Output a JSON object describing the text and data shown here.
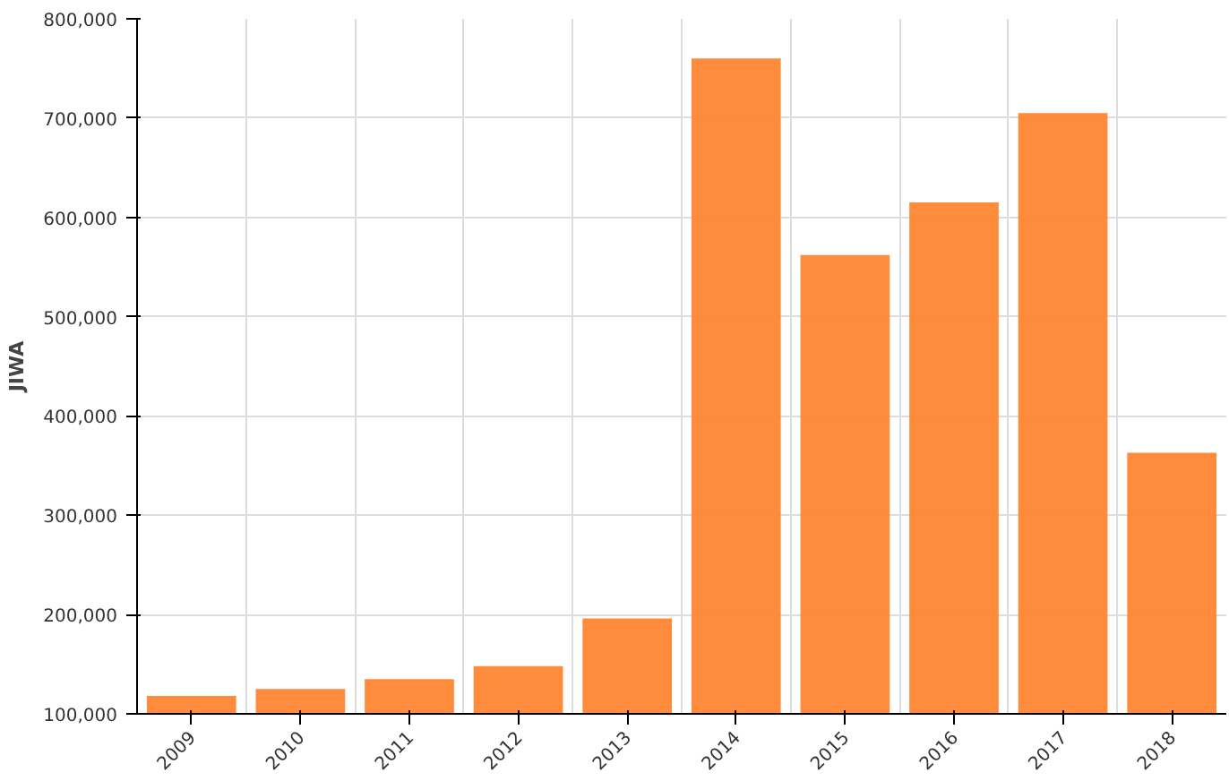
{
  "chart_data": {
    "type": "bar",
    "ylabel": "JIWA",
    "categories": [
      "2009",
      "2010",
      "2011",
      "2012",
      "2013",
      "2014",
      "2015",
      "2016",
      "2017",
      "2018"
    ],
    "values": [
      118000,
      125000,
      135000,
      148000,
      196000,
      760000,
      562000,
      615000,
      705000,
      363000
    ],
    "color": "#ff8533",
    "ylim": [
      100000,
      800000
    ],
    "yticks": [
      {
        "value": 100000,
        "label": "100,000"
      },
      {
        "value": 200000,
        "label": "200,000"
      },
      {
        "value": 300000,
        "label": "300,000"
      },
      {
        "value": 400000,
        "label": "400,000"
      },
      {
        "value": 500000,
        "label": "500,000"
      },
      {
        "value": 600000,
        "label": "600,000"
      },
      {
        "value": 700000,
        "label": "700,000"
      },
      {
        "value": 800000,
        "label": "800,000"
      }
    ],
    "grid": true
  }
}
